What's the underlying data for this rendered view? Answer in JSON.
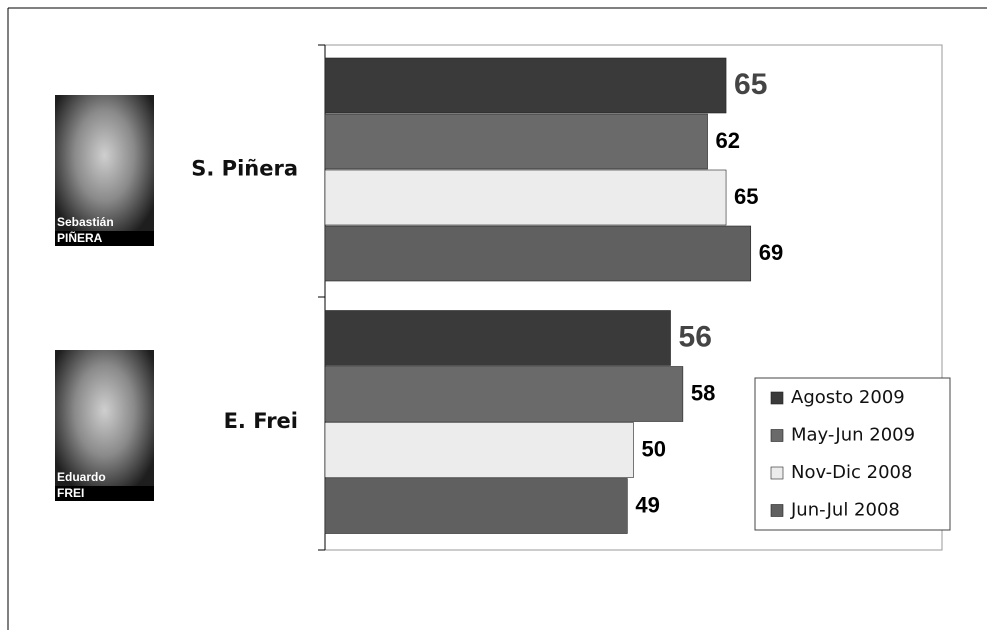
{
  "chart_data": {
    "type": "bar",
    "orientation": "horizontal",
    "categories": [
      "S. Piñera",
      "E. Frei"
    ],
    "series": [
      {
        "name": "Agosto 2009",
        "color": "#3a3a3a",
        "values": [
          65,
          56
        ]
      },
      {
        "name": "May-Jun 2009",
        "color": "#6a6a6a",
        "values": [
          62,
          58
        ]
      },
      {
        "name": "Nov-Dic 2008",
        "color": "#ececec",
        "values": [
          65,
          50
        ]
      },
      {
        "name": "Jun-Jul 2008",
        "color": "#606060",
        "values": [
          69,
          49
        ]
      }
    ],
    "xlim": [
      0,
      100
    ],
    "legend": "lower right"
  },
  "portraits": [
    {
      "first": "Sebastián",
      "last": "PIÑERA"
    },
    {
      "first": "Eduardo",
      "last": "FREI"
    }
  ]
}
